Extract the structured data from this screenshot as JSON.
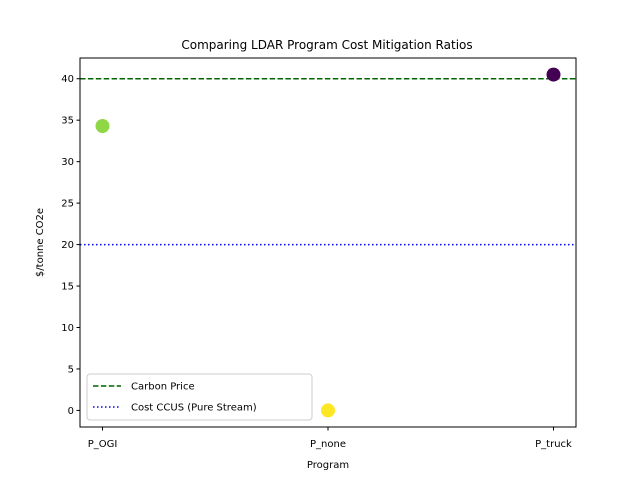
{
  "chart_data": {
    "type": "scatter",
    "title": "Comparing LDAR Program Cost Mitigation Ratios",
    "xlabel": "Program",
    "ylabel": "$/tonne CO2e",
    "categories": [
      "P_OGI",
      "P_none",
      "P_truck"
    ],
    "points": [
      {
        "x": "P_OGI",
        "y": 34.3,
        "color": "#8fd744"
      },
      {
        "x": "P_none",
        "y": 0.0,
        "color": "#fde725"
      },
      {
        "x": "P_truck",
        "y": 40.5,
        "color": "#440154"
      }
    ],
    "ylim": [
      -2.0,
      42.5
    ],
    "yticks": [
      0,
      5,
      10,
      15,
      20,
      25,
      30,
      35,
      40
    ],
    "reference_lines": [
      {
        "name": "Carbon Price",
        "y": 40,
        "color": "#006400",
        "style": "dashed"
      },
      {
        "name": "Cost CCUS (Pure Stream)",
        "y": 20,
        "color": "#0000ff",
        "style": "dotted"
      }
    ],
    "legend_position": "lower-left",
    "grid": false
  }
}
